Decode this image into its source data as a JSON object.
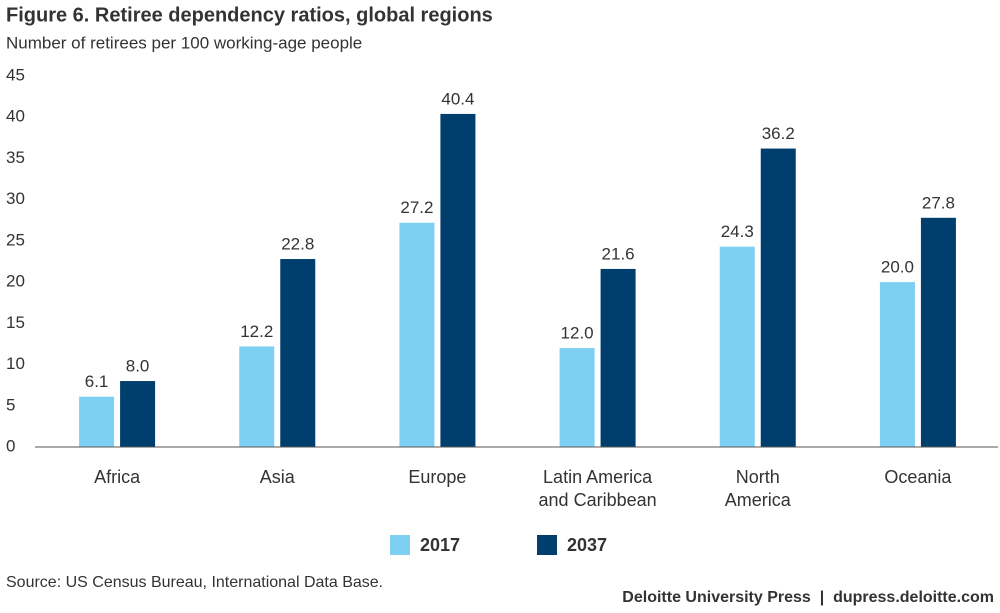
{
  "chart_data": {
    "type": "bar",
    "title": "Figure 6. Retiree dependency ratios, global regions",
    "subtitle": "Number of retirees per 100 working-age people",
    "categories": [
      "Africa",
      "Asia",
      "Europe",
      "Latin America\nand Caribbean",
      "North\nAmerica",
      "Oceania"
    ],
    "series": [
      {
        "name": "2017",
        "color": "#7ed0f3",
        "values": [
          6.1,
          12.2,
          27.2,
          12.0,
          24.3,
          20.0
        ],
        "value_labels": [
          "6.1",
          "12.2",
          "27.2",
          "12.0",
          "24.3",
          "20.0"
        ]
      },
      {
        "name": "2037",
        "color": "#003f6d",
        "values": [
          8.0,
          22.8,
          40.4,
          21.6,
          36.2,
          27.8
        ],
        "value_labels": [
          "8.0",
          "22.8",
          "40.4",
          "21.6",
          "36.2",
          "27.8"
        ]
      }
    ],
    "ylim": [
      0,
      45
    ],
    "yticks": [
      0,
      5,
      10,
      15,
      20,
      25,
      30,
      35,
      40,
      45
    ],
    "grid": false,
    "legend": "bottom",
    "source": "Source: US Census Bureau, International Data Base.",
    "credit": "Deloitte University Press  |  dupress.deloitte.com"
  }
}
